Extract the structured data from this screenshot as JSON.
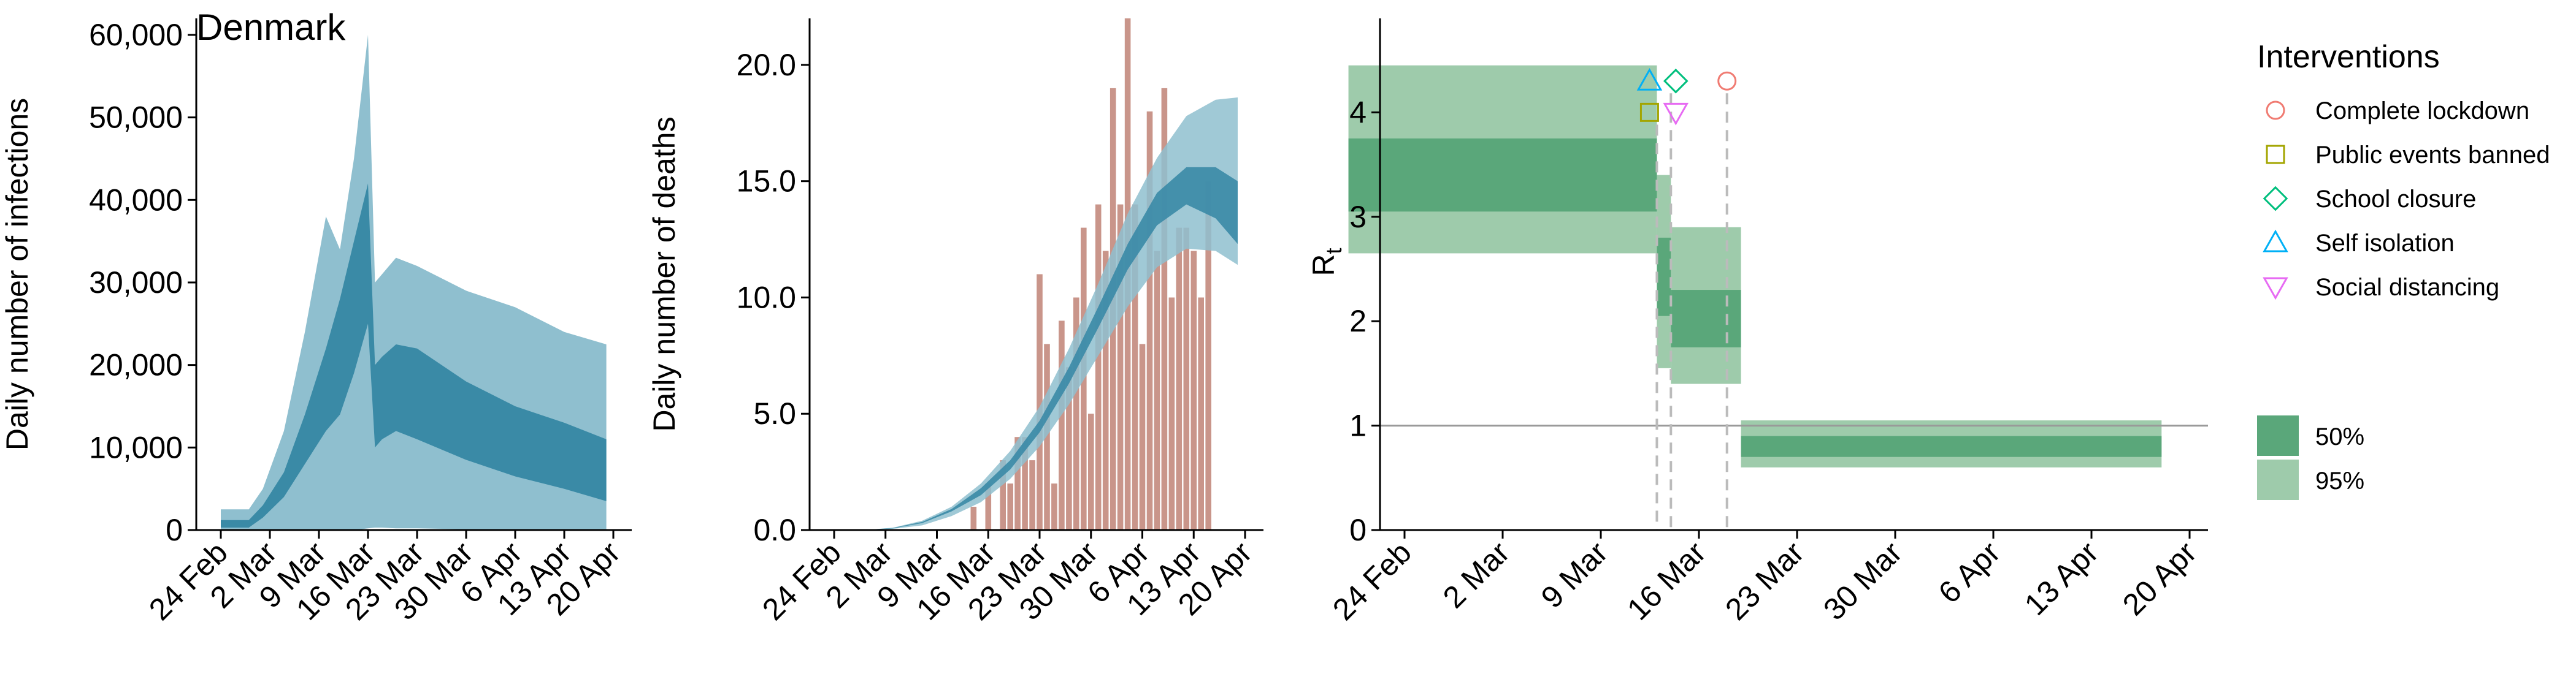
{
  "chart_data": [
    {
      "type": "area",
      "title": "Denmark",
      "ylabel": "Daily number of infections",
      "xlabel": "",
      "x_ticks": [
        "24 Feb",
        "2 Mar",
        "9 Mar",
        "16 Mar",
        "23 Mar",
        "30 Mar",
        "6 Apr",
        "13 Apr",
        "20 Apr"
      ],
      "y_ticks": [
        "0",
        "10,000",
        "20,000",
        "30,000",
        "40,000",
        "50,000",
        "60,000"
      ],
      "ylim": [
        0,
        62000
      ],
      "x_start": "2020-02-24",
      "x_end": "2020-04-20",
      "series": [
        {
          "name": "95%",
          "color": "#8fbfcf",
          "x": [
            "2020-02-24",
            "2020-02-28",
            "2020-03-01",
            "2020-03-04",
            "2020-03-07",
            "2020-03-10",
            "2020-03-12",
            "2020-03-14",
            "2020-03-16",
            "2020-03-17",
            "2020-03-18",
            "2020-03-20",
            "2020-03-23",
            "2020-03-30",
            "2020-04-06",
            "2020-04-13",
            "2020-04-19"
          ],
          "lower": [
            0,
            0,
            0,
            0,
            0,
            0,
            0,
            0,
            200,
            300,
            300,
            200,
            200,
            100,
            50,
            30,
            20
          ],
          "upper": [
            2500,
            2500,
            5000,
            12000,
            24000,
            38000,
            34000,
            45000,
            60000,
            30000,
            31000,
            33000,
            32000,
            29000,
            27000,
            24000,
            22500
          ]
        },
        {
          "name": "50%",
          "color": "#3a8aa6",
          "x": [
            "2020-02-24",
            "2020-02-28",
            "2020-03-01",
            "2020-03-04",
            "2020-03-07",
            "2020-03-10",
            "2020-03-12",
            "2020-03-14",
            "2020-03-16",
            "2020-03-17",
            "2020-03-18",
            "2020-03-20",
            "2020-03-23",
            "2020-03-30",
            "2020-04-06",
            "2020-04-13",
            "2020-04-19"
          ],
          "lower": [
            300,
            300,
            1500,
            4000,
            8000,
            12000,
            14000,
            19000,
            25000,
            10000,
            11000,
            12000,
            11000,
            8500,
            6500,
            5000,
            3500
          ],
          "upper": [
            1200,
            1200,
            3000,
            7000,
            14000,
            22000,
            28000,
            35000,
            42000,
            20000,
            21000,
            22500,
            22000,
            18000,
            15000,
            13000,
            11000
          ]
        }
      ]
    },
    {
      "type": "bar",
      "title": "",
      "ylabel": "Daily number of deaths",
      "xlabel": "",
      "x_ticks": [
        "24 Feb",
        "2 Mar",
        "9 Mar",
        "16 Mar",
        "23 Mar",
        "30 Mar",
        "6 Apr",
        "13 Apr",
        "20 Apr"
      ],
      "y_ticks": [
        "0.0",
        "5.0",
        "10.0",
        "15.0",
        "20.0"
      ],
      "ylim": [
        0,
        22
      ],
      "x_start": "2020-02-24",
      "x_end": "2020-04-20",
      "bars_start": "2020-03-14",
      "bars": [
        1,
        0,
        2,
        0,
        3,
        2,
        4,
        4,
        3,
        11,
        8,
        2,
        9,
        7,
        10,
        13,
        5,
        14,
        12,
        19,
        14,
        22,
        14,
        8,
        18,
        12,
        19,
        10,
        13,
        13,
        12,
        10,
        15
      ],
      "bar_color": "#c9958a",
      "bands": [
        {
          "name": "95%",
          "color": "#8fbfcf",
          "x": [
            "2020-02-28",
            "2020-03-03",
            "2020-03-07",
            "2020-03-11",
            "2020-03-15",
            "2020-03-19",
            "2020-03-23",
            "2020-03-27",
            "2020-03-31",
            "2020-04-04",
            "2020-04-08",
            "2020-04-12",
            "2020-04-16",
            "2020-04-19"
          ],
          "lower": [
            0,
            0.05,
            0.2,
            0.6,
            1.2,
            2.2,
            3.6,
            5.4,
            7.5,
            9.6,
            11.3,
            12.1,
            12.0,
            11.4
          ],
          "upper": [
            0,
            0.1,
            0.4,
            1.0,
            2.0,
            3.4,
            5.3,
            7.8,
            10.6,
            13.6,
            16.0,
            17.8,
            18.5,
            18.6
          ]
        },
        {
          "name": "50%",
          "color": "#3a8aa6",
          "x": [
            "2020-02-28",
            "2020-03-03",
            "2020-03-07",
            "2020-03-11",
            "2020-03-15",
            "2020-03-19",
            "2020-03-23",
            "2020-03-27",
            "2020-03-31",
            "2020-04-04",
            "2020-04-08",
            "2020-04-12",
            "2020-04-16",
            "2020-04-19"
          ],
          "lower": [
            0,
            0.07,
            0.3,
            0.8,
            1.5,
            2.6,
            4.2,
            6.3,
            8.7,
            11.2,
            13.1,
            14.0,
            13.4,
            12.3
          ],
          "upper": [
            0,
            0.09,
            0.35,
            0.9,
            1.8,
            3.0,
            4.7,
            7.0,
            9.6,
            12.3,
            14.5,
            15.6,
            15.6,
            15.0
          ]
        }
      ]
    },
    {
      "type": "area",
      "title": "",
      "ylabel": "R",
      "ylabel_subscript": "t",
      "xlabel": "",
      "x_ticks": [
        "24 Feb",
        "2 Mar",
        "9 Mar",
        "16 Mar",
        "23 Mar",
        "30 Mar",
        "6 Apr",
        "13 Apr",
        "20 Apr"
      ],
      "y_ticks": [
        "0",
        "1",
        "2",
        "3",
        "4"
      ],
      "ylim": [
        0,
        4.9
      ],
      "x_start": "2020-02-24",
      "x_end": "2020-04-20",
      "reference_line": 1,
      "segments": [
        {
          "x0": "2020-02-20",
          "x1": "2020-03-13",
          "ci95": [
            2.65,
            4.45
          ],
          "ci50": [
            3.05,
            3.75
          ]
        },
        {
          "x0": "2020-03-13",
          "x1": "2020-03-14",
          "ci95": [
            1.55,
            3.4
          ],
          "ci50": [
            2.05,
            2.8
          ]
        },
        {
          "x0": "2020-03-14",
          "x1": "2020-03-19",
          "ci95": [
            1.4,
            2.9
          ],
          "ci50": [
            1.75,
            2.3
          ]
        },
        {
          "x0": "2020-03-19",
          "x1": "2020-04-18",
          "ci95": [
            0.6,
            1.05
          ],
          "ci50": [
            0.7,
            0.9
          ]
        }
      ],
      "interventions": [
        {
          "name": "Complete lockdown",
          "date": "2020-03-18",
          "symbol": "circle",
          "color": "#f07b72",
          "r": 4.3
        },
        {
          "name": "Public events banned",
          "date": "2020-03-13",
          "symbol": "square",
          "color": "#a3a500",
          "r": 4.0
        },
        {
          "name": "School closure",
          "date": "2020-03-14",
          "symbol": "diamond",
          "color": "#00bf7d",
          "r": 4.3
        },
        {
          "name": "Self isolation",
          "date": "2020-03-13",
          "symbol": "triangle-up",
          "color": "#00b0f6",
          "r": 4.3
        },
        {
          "name": "Social distancing",
          "date": "2020-03-14",
          "symbol": "triangle-down",
          "color": "#e76bf3",
          "r": 4.0
        }
      ],
      "legend": {
        "title": "Interventions",
        "items": [
          "Complete lockdown",
          "Public events banned",
          "School closure",
          "Self isolation",
          "Social distancing"
        ],
        "ci_items": [
          {
            "label": "50%",
            "color": "#5aa77a"
          },
          {
            "label": "95%",
            "color": "#9ecbab"
          }
        ],
        "placement": "right"
      }
    }
  ]
}
